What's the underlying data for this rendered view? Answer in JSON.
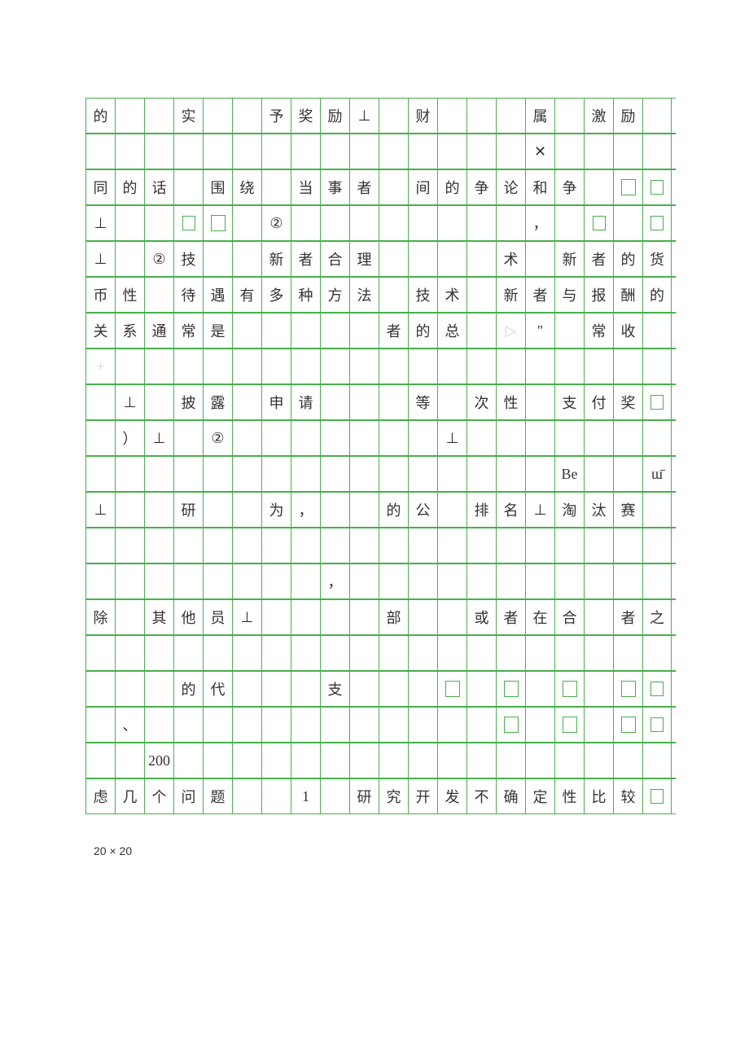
{
  "columns": 20,
  "footer": "20 × 20",
  "rows": [
    {
      "cells": [
        "的",
        "",
        "",
        "实",
        "",
        "",
        "予",
        "奖",
        "励",
        "⊥",
        "",
        "财",
        "",
        "",
        "",
        "属",
        "",
        "激",
        "励",
        ""
      ]
    },
    {
      "cells": [
        "",
        "",
        "",
        "",
        "",
        "",
        "",
        "",
        "",
        "",
        "",
        "",
        "",
        "",
        "",
        "✕",
        "",
        "",
        "",
        ""
      ]
    },
    {
      "cells": [
        "同",
        "的",
        "话",
        "",
        "围",
        "绕",
        "",
        "当",
        "事",
        "者",
        "",
        "间",
        "的",
        "争",
        "论",
        "和",
        "争",
        "",
        "",
        ""
      ]
    },
    {
      "cells": [
        "⊥",
        "",
        "",
        "",
        "",
        "",
        "②",
        "",
        "",
        "",
        "",
        "",
        "",
        "",
        "",
        "，",
        "",
        "",
        "",
        ""
      ]
    },
    {
      "cells": [
        "⊥",
        "",
        "②",
        "技",
        "",
        "",
        "新",
        "者",
        "合",
        "理",
        "",
        "",
        "",
        "",
        "术",
        "",
        "新",
        "者",
        "的",
        "货"
      ]
    },
    {
      "cells": [
        "币",
        "性",
        "",
        "待",
        "遇",
        "有",
        "多",
        "种",
        "方",
        "法",
        "",
        "技",
        "术",
        "",
        "新",
        "者",
        "与",
        "报",
        "酬",
        "的"
      ]
    },
    {
      "cells": [
        "关",
        "系",
        "通",
        "常",
        "是",
        "",
        "",
        "",
        "",
        "",
        "者",
        "的",
        "总",
        "",
        "▷",
        "\"",
        "",
        "常",
        "收",
        ""
      ]
    },
    {
      "cells": [
        "+",
        "",
        "",
        "",
        "",
        "",
        "",
        "",
        "",
        "",
        "",
        "",
        "",
        "",
        "",
        "",
        "",
        "",
        "",
        ""
      ]
    },
    {
      "cells": [
        "",
        "⊥",
        "",
        "披",
        "露",
        "",
        "申",
        "请",
        "",
        "",
        "",
        "等",
        "",
        "次",
        "性",
        "",
        "支",
        "付",
        "奖",
        ""
      ]
    },
    {
      "cells": [
        "",
        "）",
        "⊥",
        "",
        "②",
        "",
        "",
        "",
        "",
        "",
        "",
        "",
        "⊥",
        "",
        "",
        "",
        "",
        "",
        "",
        ""
      ]
    },
    {
      "cells": [
        "",
        "",
        "",
        "",
        "",
        "",
        "",
        "",
        "",
        "",
        "",
        "",
        "",
        "",
        "",
        "",
        "Be",
        "",
        "",
        "ɯ̄"
      ]
    },
    {
      "cells": [
        "⊥",
        "",
        "",
        "研",
        "",
        "",
        "为",
        "，",
        "",
        "",
        "的",
        "公",
        "",
        "排",
        "名",
        "⊥",
        "淘",
        "汰",
        "赛",
        ""
      ]
    },
    {
      "cells": [
        "",
        "",
        "",
        "",
        "",
        "",
        "",
        "",
        "",
        "",
        "",
        "",
        "",
        "",
        "",
        "",
        "",
        "",
        "",
        ""
      ]
    },
    {
      "cells": [
        "",
        "",
        "",
        "",
        "",
        "",
        "",
        "",
        "，",
        "",
        "",
        "",
        "",
        "",
        "",
        "",
        "",
        "",
        "",
        ""
      ]
    },
    {
      "cells": [
        "除",
        "",
        "其",
        "他",
        "员",
        "⊥",
        "",
        "",
        "",
        "",
        "部",
        "",
        "",
        "或",
        "者",
        "在",
        "合",
        "",
        "者",
        "之"
      ]
    },
    {
      "cells": [
        "",
        "",
        "",
        "",
        "",
        "",
        "",
        "",
        "",
        "",
        "",
        "",
        "",
        "",
        "",
        "",
        "",
        "",
        "",
        ""
      ]
    },
    {
      "cells": [
        "",
        "",
        "",
        "的",
        "代",
        "",
        "",
        "",
        "支",
        "",
        "",
        "",
        "",
        "",
        "",
        "",
        "",
        "",
        "",
        ""
      ]
    },
    {
      "cells": [
        "",
        "、",
        "",
        "",
        "",
        "",
        "",
        "",
        "",
        "",
        "",
        "",
        "",
        "",
        "",
        "",
        "",
        "",
        "",
        ""
      ]
    },
    {
      "cells": [
        "",
        "",
        "200",
        "",
        "",
        "",
        "",
        "",
        "",
        "",
        "",
        "",
        "",
        "",
        "",
        "",
        "",
        "",
        "",
        ""
      ]
    },
    {
      "cells": [
        "虑",
        "几",
        "个",
        "问",
        "题",
        "",
        "",
        "1",
        "",
        "研",
        "究",
        "开",
        "发",
        "不",
        "确",
        "定",
        "性",
        "比",
        "较",
        ""
      ]
    }
  ],
  "green_box_positions": {
    "2": [
      18,
      19
    ],
    "3": [
      3,
      4,
      17,
      19
    ],
    "8": [
      19
    ],
    "16": [
      12,
      14,
      16,
      18,
      19
    ],
    "17": [
      14,
      16,
      18,
      19
    ],
    "19": [
      19
    ]
  },
  "faded_cells": {
    "0": [
      1,
      2,
      4,
      5,
      12,
      13,
      14,
      16,
      19
    ],
    "1": [
      0,
      1,
      2,
      3,
      4,
      5,
      6,
      7,
      8,
      9,
      10,
      11,
      12,
      13,
      14,
      16,
      17,
      18,
      19
    ],
    "2": [
      3,
      10
    ],
    "3": [
      1,
      2,
      5,
      7,
      8,
      9,
      10,
      11,
      12,
      13,
      14,
      16
    ],
    "4": [
      1,
      4,
      5,
      10,
      11,
      12,
      13
    ],
    "5": [
      2,
      10,
      13
    ],
    "6": [
      5,
      6,
      7,
      8,
      9,
      13,
      14,
      16
    ],
    "7": [
      0,
      1,
      2,
      3,
      4,
      5,
      6,
      7,
      8,
      9,
      10,
      11,
      12,
      13,
      14,
      15,
      16,
      17,
      18,
      19
    ],
    "8": [
      0,
      2,
      8,
      9,
      10,
      15
    ],
    "9": [
      0,
      3,
      5,
      6,
      7,
      8,
      9,
      10,
      11,
      13,
      14,
      15,
      16,
      17,
      18,
      19
    ],
    "10": [
      0,
      1,
      2,
      3,
      4,
      5,
      6,
      7,
      8,
      9,
      10,
      11,
      12,
      13,
      14,
      15,
      17,
      18
    ],
    "11": [
      1,
      2,
      4,
      5,
      8,
      9,
      12
    ],
    "12": [
      0,
      1,
      2,
      3,
      4,
      5,
      6,
      7,
      8,
      9,
      10,
      11,
      12,
      13,
      14,
      15,
      16,
      17,
      18,
      19
    ],
    "13": [
      0,
      1,
      2,
      3,
      4,
      5,
      6,
      7,
      9,
      10,
      11,
      12,
      13,
      14,
      15,
      16,
      17,
      18,
      19
    ],
    "14": [
      1,
      6,
      7,
      8,
      9,
      11,
      12,
      17
    ],
    "15": [
      0,
      1,
      2,
      3,
      4,
      5,
      6,
      7,
      8,
      9,
      10,
      11,
      12,
      13,
      14,
      15,
      16,
      17,
      18,
      19
    ],
    "16": [
      0,
      1,
      2,
      5,
      6,
      7,
      9,
      10,
      11
    ],
    "17": [
      0,
      2,
      3,
      4,
      5,
      6,
      7,
      8,
      9,
      10,
      11,
      12,
      13
    ],
    "18": [
      0,
      1,
      3,
      4,
      5,
      6,
      7,
      8,
      9,
      10,
      11,
      12,
      13,
      14,
      15,
      16,
      17,
      18,
      19
    ],
    "19": [
      5,
      6
    ]
  }
}
